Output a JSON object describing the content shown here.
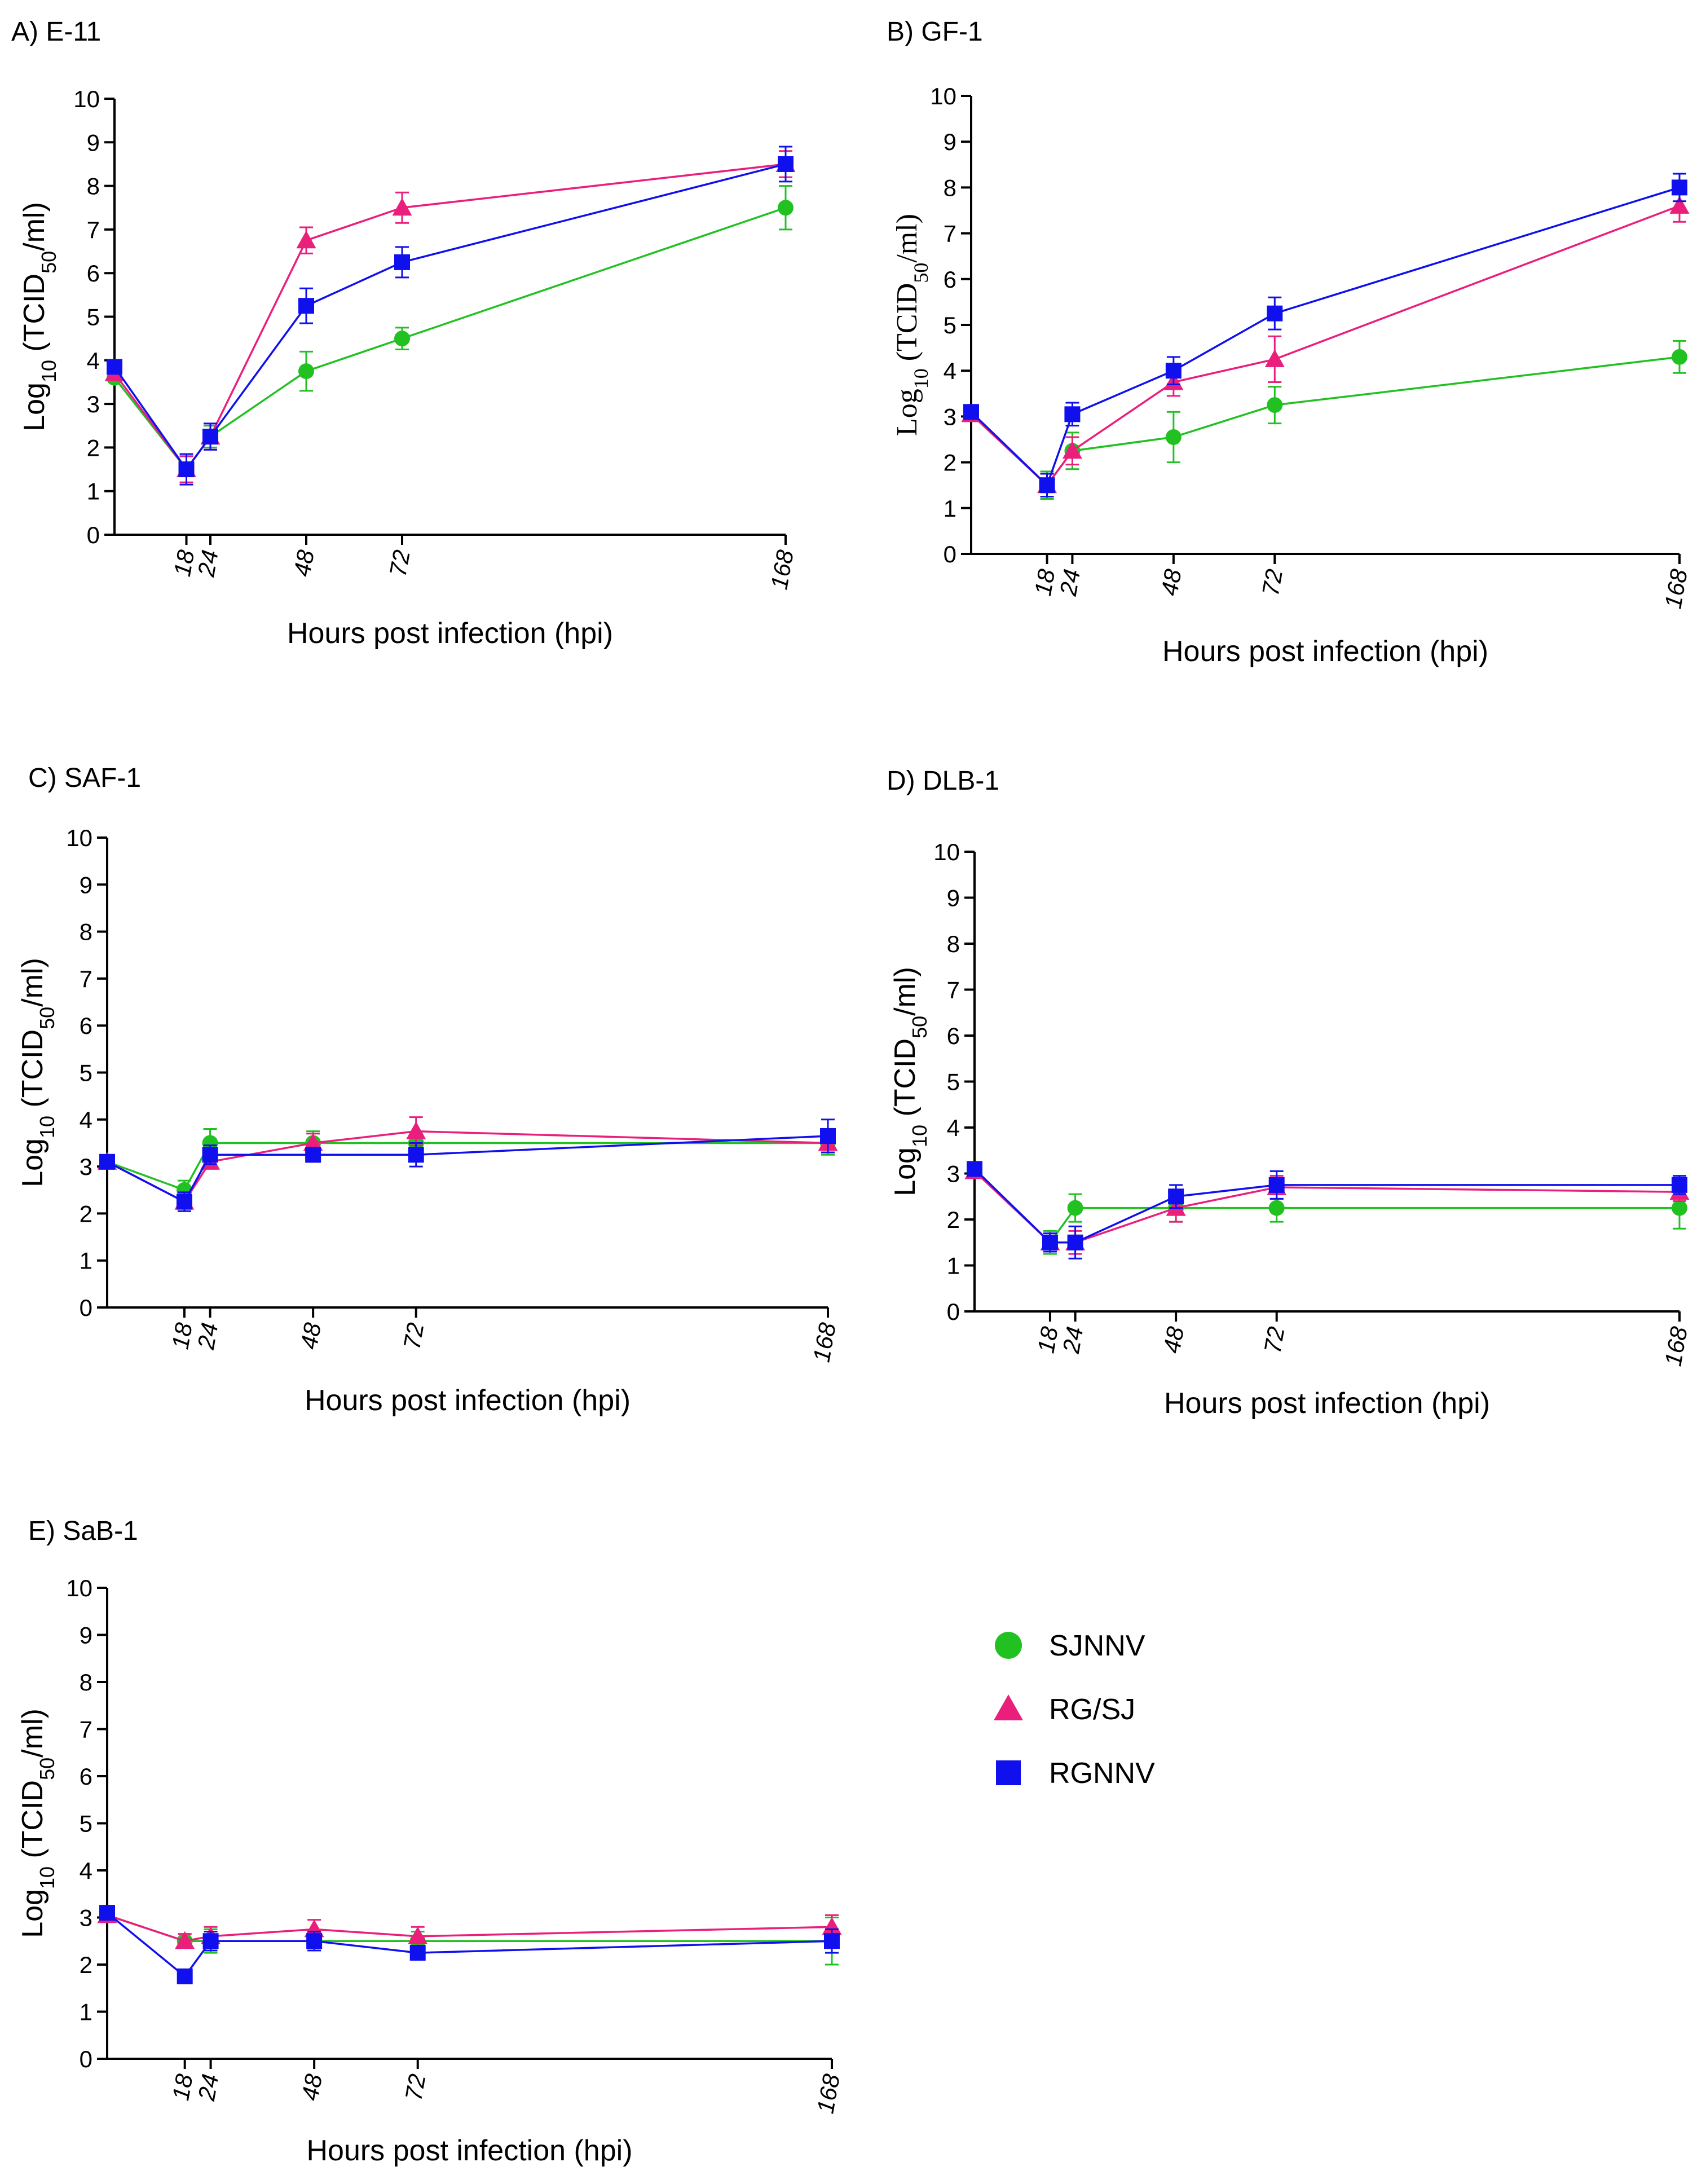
{
  "chart_data": [
    {
      "type": "line",
      "title": "A) E-11",
      "xlabel": "Hours post infection (hpi)",
      "ylabel": {
        "prefix": "Log",
        "prefix_sub": "10",
        "open": " (TCID",
        "sub": "50",
        "close": "/ml)"
      },
      "x_ticks": [
        "18",
        "24",
        "48",
        "72",
        "168"
      ],
      "y_ticks": [
        "0",
        "1",
        "2",
        "3",
        "4",
        "5",
        "6",
        "7",
        "8",
        "9",
        "10"
      ],
      "xlim": [
        0,
        168
      ],
      "ylim": [
        0,
        10
      ],
      "series": [
        {
          "name": "SJNNV",
          "x": [
            0,
            18,
            24,
            48,
            72,
            168
          ],
          "y": [
            3.6,
            1.5,
            2.25,
            3.75,
            4.5,
            7.5
          ],
          "err": [
            0.1,
            0.3,
            0.25,
            0.45,
            0.25,
            0.5
          ]
        },
        {
          "name": "RG/SJ",
          "x": [
            0,
            18,
            24,
            48,
            72,
            168
          ],
          "y": [
            3.7,
            1.5,
            2.25,
            6.75,
            7.5,
            8.5
          ],
          "err": [
            0.1,
            0.3,
            0.3,
            0.3,
            0.35,
            0.3
          ]
        },
        {
          "name": "RGNNV",
          "x": [
            0,
            18,
            24,
            48,
            72,
            168
          ],
          "y": [
            3.85,
            1.5,
            2.25,
            5.25,
            6.25,
            8.5
          ],
          "err": [
            0.1,
            0.35,
            0.3,
            0.4,
            0.35,
            0.4
          ]
        }
      ]
    },
    {
      "type": "line",
      "title": "B) GF-1",
      "xlabel": "Hours post infection (hpi)",
      "ylabel": {
        "prefix": "Log",
        "prefix_sub": "10",
        "open": " (TCID",
        "sub": "50",
        "close": "/ml)"
      },
      "x_ticks": [
        "18",
        "24",
        "48",
        "72",
        "168"
      ],
      "y_ticks": [
        "0",
        "1",
        "2",
        "3",
        "4",
        "5",
        "6",
        "7",
        "8",
        "9",
        "10"
      ],
      "xlim": [
        0,
        168
      ],
      "ylim": [
        0,
        10
      ],
      "series": [
        {
          "name": "SJNNV",
          "x": [
            0,
            18,
            24,
            48,
            72,
            168
          ],
          "y": [
            3.05,
            1.5,
            2.25,
            2.55,
            3.25,
            4.3
          ],
          "err": [
            0.1,
            0.3,
            0.4,
            0.55,
            0.4,
            0.35
          ]
        },
        {
          "name": "RG/SJ",
          "x": [
            0,
            18,
            24,
            48,
            72,
            168
          ],
          "y": [
            3.05,
            1.5,
            2.25,
            3.75,
            4.25,
            7.6
          ],
          "err": [
            0.1,
            0.25,
            0.3,
            0.3,
            0.5,
            0.35
          ]
        },
        {
          "name": "RGNNV",
          "x": [
            0,
            18,
            24,
            48,
            72,
            168
          ],
          "y": [
            3.1,
            1.5,
            3.05,
            4.0,
            5.25,
            8.0
          ],
          "err": [
            0.1,
            0.25,
            0.25,
            0.3,
            0.35,
            0.3
          ]
        }
      ]
    },
    {
      "type": "line",
      "title": "C) SAF-1",
      "xlabel": "Hours post infection (hpi)",
      "ylabel": {
        "prefix": "Log",
        "prefix_sub": "10",
        "open": " (TCID",
        "sub": "50",
        "close": "/ml)"
      },
      "x_ticks": [
        "18",
        "24",
        "48",
        "72",
        "168"
      ],
      "y_ticks": [
        "0",
        "1",
        "2",
        "3",
        "4",
        "5",
        "6",
        "7",
        "8",
        "9",
        "10"
      ],
      "xlim": [
        0,
        168
      ],
      "ylim": [
        0,
        10
      ],
      "series": [
        {
          "name": "SJNNV",
          "x": [
            0,
            18,
            24,
            48,
            72,
            168
          ],
          "y": [
            3.1,
            2.5,
            3.5,
            3.5,
            3.5,
            3.5
          ],
          "err": [
            0.1,
            0.2,
            0.3,
            0.25,
            0.2,
            0.25
          ]
        },
        {
          "name": "RG/SJ",
          "x": [
            0,
            18,
            24,
            48,
            72,
            168
          ],
          "y": [
            3.1,
            2.25,
            3.1,
            3.5,
            3.75,
            3.5
          ],
          "err": [
            0.1,
            0.2,
            0.15,
            0.2,
            0.3,
            0.2
          ]
        },
        {
          "name": "RGNNV",
          "x": [
            0,
            18,
            24,
            48,
            72,
            168
          ],
          "y": [
            3.1,
            2.25,
            3.25,
            3.25,
            3.25,
            3.65
          ],
          "err": [
            0.1,
            0.2,
            0.2,
            0.15,
            0.25,
            0.35
          ]
        }
      ]
    },
    {
      "type": "line",
      "title": "D) DLB-1",
      "xlabel": "Hours post infection (hpi)",
      "ylabel": {
        "prefix": "Log",
        "prefix_sub": "10",
        "open": " (TCID",
        "sub": "50",
        "close": "/ml)"
      },
      "x_ticks": [
        "18",
        "24",
        "48",
        "72",
        "168"
      ],
      "y_ticks": [
        "0",
        "1",
        "2",
        "3",
        "4",
        "5",
        "6",
        "7",
        "8",
        "9",
        "10"
      ],
      "xlim": [
        0,
        168
      ],
      "ylim": [
        0,
        10
      ],
      "series": [
        {
          "name": "SJNNV",
          "x": [
            0,
            18,
            24,
            48,
            72,
            168
          ],
          "y": [
            3.05,
            1.5,
            2.25,
            2.25,
            2.25,
            2.25
          ],
          "err": [
            0.1,
            0.25,
            0.3,
            0.3,
            0.3,
            0.45
          ]
        },
        {
          "name": "RG/SJ",
          "x": [
            0,
            18,
            24,
            48,
            72,
            168
          ],
          "y": [
            3.05,
            1.5,
            1.5,
            2.25,
            2.7,
            2.6
          ],
          "err": [
            0.1,
            0.2,
            0.25,
            0.3,
            0.25,
            0.2
          ]
        },
        {
          "name": "RGNNV",
          "x": [
            0,
            18,
            24,
            48,
            72,
            168
          ],
          "y": [
            3.1,
            1.5,
            1.5,
            2.5,
            2.75,
            2.75
          ],
          "err": [
            0.1,
            0.2,
            0.35,
            0.25,
            0.3,
            0.2
          ]
        }
      ]
    },
    {
      "type": "line",
      "title": "E) SaB-1",
      "xlabel": "Hours post infection (hpi)",
      "ylabel": {
        "prefix": "Log",
        "prefix_sub": "10",
        "open": " (TCID",
        "sub": "50",
        "close": "/ml)"
      },
      "x_ticks": [
        "18",
        "24",
        "48",
        "72",
        "168"
      ],
      "y_ticks": [
        "0",
        "1",
        "2",
        "3",
        "4",
        "5",
        "6",
        "7",
        "8",
        "9",
        "10"
      ],
      "xlim": [
        0,
        168
      ],
      "ylim": [
        0,
        10
      ],
      "series": [
        {
          "name": "SJNNV",
          "x": [
            0,
            18,
            24,
            48,
            72,
            168
          ],
          "y": [
            3.05,
            2.5,
            2.5,
            2.5,
            2.5,
            2.5
          ],
          "err": [
            0.1,
            0.15,
            0.25,
            0.2,
            0.2,
            0.5
          ]
        },
        {
          "name": "RG/SJ",
          "x": [
            0,
            18,
            24,
            48,
            72,
            168
          ],
          "y": [
            3.05,
            2.5,
            2.6,
            2.75,
            2.6,
            2.8
          ],
          "err": [
            0.1,
            0.15,
            0.2,
            0.2,
            0.2,
            0.25
          ]
        },
        {
          "name": "RGNNV",
          "x": [
            0,
            18,
            24,
            48,
            72,
            168
          ],
          "y": [
            3.1,
            1.75,
            2.5,
            2.5,
            2.25,
            2.5
          ],
          "err": [
            0.1,
            0.1,
            0.2,
            0.2,
            0.15,
            0.25
          ]
        }
      ]
    }
  ],
  "legend": {
    "placement": "lower-right",
    "items": [
      {
        "name": "SJNNV",
        "marker": "circle"
      },
      {
        "name": "RG/SJ",
        "marker": "triangle"
      },
      {
        "name": "RGNNV",
        "marker": "square"
      }
    ]
  },
  "colors": {
    "SJNNV": "#22c122",
    "RG/SJ": "#ea1f7c",
    "RGNNV": "#1010ee",
    "axis": "#000000"
  }
}
